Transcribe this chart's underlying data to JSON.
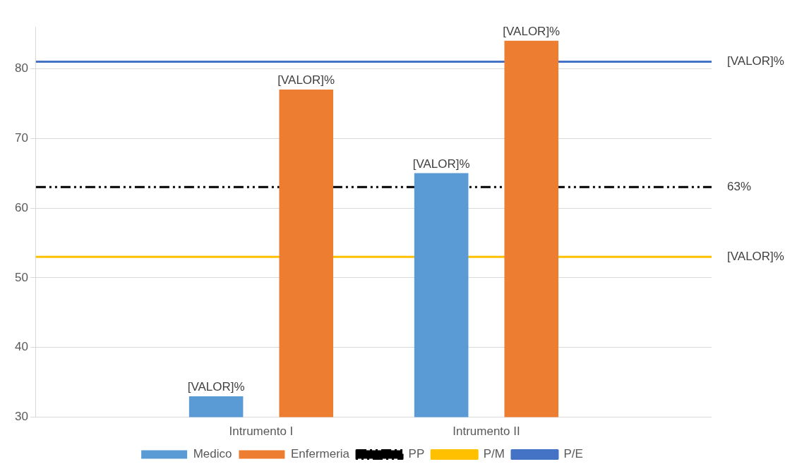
{
  "chart_data": {
    "type": "bar",
    "categories": [
      null,
      "Intrumento I",
      "Intrumento II",
      null
    ],
    "series": [
      {
        "name": "Medico",
        "color": "#5b9bd5",
        "values": [
          null,
          33,
          65,
          null
        ],
        "value_labels": [
          null,
          "[VALOR]%",
          "[VALOR]%",
          null
        ]
      },
      {
        "name": "Enfermeria",
        "color": "#ed7d31",
        "values": [
          null,
          77,
          84,
          null
        ],
        "value_labels": [
          null,
          "[VALOR]%",
          "[VALOR]%",
          null
        ]
      },
      {
        "name": "PP",
        "type": "line",
        "color": "#000000",
        "line_style": "dashed",
        "values": [
          63,
          63,
          63,
          63
        ],
        "value_labels": [
          null,
          null,
          null,
          "63%"
        ]
      },
      {
        "name": "P/M",
        "type": "line",
        "color": "#ffc000",
        "line_style": "solid",
        "values": [
          53,
          53,
          53,
          53
        ],
        "value_labels": [
          null,
          null,
          null,
          "[VALOR]%"
        ]
      },
      {
        "name": "P/E",
        "type": "line",
        "color": "#4472c4",
        "line_style": "solid",
        "values": [
          81,
          81,
          81,
          81
        ],
        "value_labels": [
          null,
          null,
          null,
          "[VALOR]%"
        ]
      }
    ],
    "ylim": [
      30,
      86
    ],
    "yticks": [
      30,
      40,
      50,
      60,
      70,
      80
    ],
    "grid": "y",
    "legend": "bottom",
    "marker": "none"
  }
}
